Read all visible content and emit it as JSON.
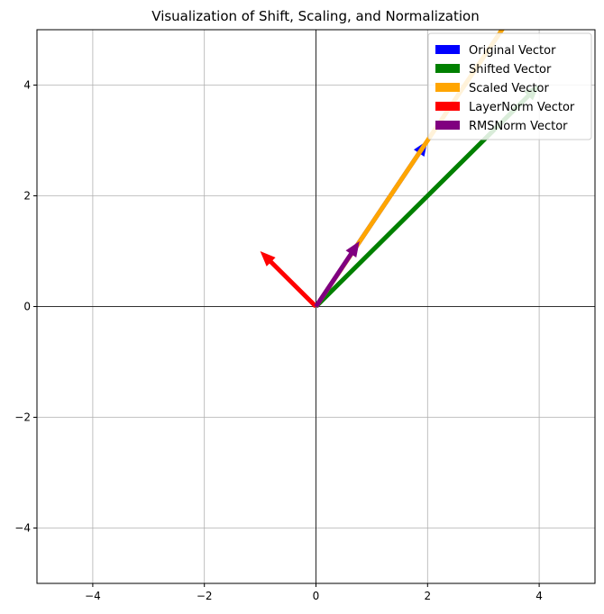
{
  "chart_data": {
    "type": "quiver",
    "title": "Visualization of Shift, Scaling, and Normalization",
    "xlabel": "",
    "ylabel": "",
    "xlim": [
      -5,
      5
    ],
    "ylim": [
      -5,
      5
    ],
    "grid": true,
    "axis_lines_at_zero": true,
    "legend_placement": "top-right",
    "x_ticks": [
      -4,
      -2,
      0,
      2,
      4
    ],
    "y_ticks": [
      -4,
      -2,
      0,
      2,
      4
    ],
    "x_tick_labels": [
      "−4",
      "−2",
      "0",
      "2",
      "4"
    ],
    "y_tick_labels": [
      "−4",
      "−2",
      "0",
      "2",
      "4"
    ],
    "series": [
      {
        "name": "Original Vector",
        "color": "#0000ff",
        "origin": [
          0,
          0
        ],
        "vector": [
          2,
          3
        ]
      },
      {
        "name": "Shifted Vector",
        "color": "#008000",
        "origin": [
          0,
          0
        ],
        "vector": [
          4,
          4
        ]
      },
      {
        "name": "Scaled Vector",
        "color": "#ffa500",
        "origin": [
          0,
          0
        ],
        "vector": [
          4,
          6
        ]
      },
      {
        "name": "LayerNorm Vector",
        "color": "#ff0000",
        "origin": [
          0,
          0
        ],
        "vector": [
          -1,
          1
        ]
      },
      {
        "name": "RMSNorm Vector",
        "color": "#800080",
        "origin": [
          0,
          0
        ],
        "vector": [
          0.78,
          1.18
        ]
      }
    ]
  }
}
